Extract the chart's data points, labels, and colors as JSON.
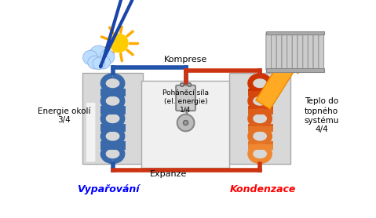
{
  "bg_color": "#ffffff",
  "label_vyparovani": "Vypařování",
  "label_kondenzace": "Kondenzace",
  "label_komprese": "Komprese",
  "label_expanze": "Expanze",
  "label_energie": "Energie okolí\n3/4",
  "label_teplo": "Teplo do\ntopného\nsystému\n4/4",
  "label_pohanci": "Poháněcí síla\n(el. energie)\n1/4",
  "coil_left_color": "#3a6aaa",
  "coil_right_color_top": "#cc3300",
  "coil_right_color_bot": "#ee8833",
  "pipe_blue": "#2255aa",
  "pipe_red": "#cc3311",
  "arrow_blue": "#1a44aa",
  "arrow_orange": "#ee8822",
  "sun_yellow": "#ffcc00",
  "sun_orange": "#ffaa00",
  "cloud_color": "#bbddff",
  "radiator_color": "#bbbbbb",
  "box_fill": "#d8d8d8",
  "box_edge": "#aaaaaa",
  "center_fill": "#f0f0f0"
}
